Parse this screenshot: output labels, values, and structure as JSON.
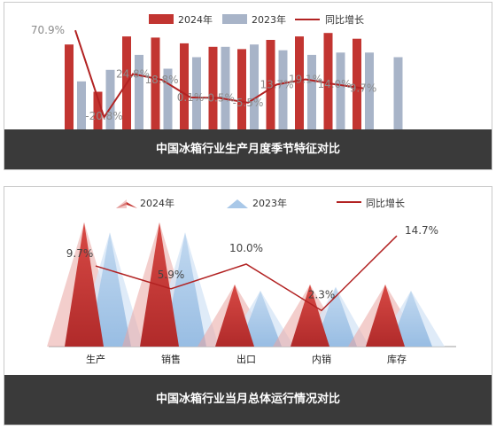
{
  "chart_data": [
    {
      "type": "bar",
      "title": "中国冰箱行业生产月度季节特征对比",
      "colors": {
        "a": "#c23531",
        "b": "#a8b4c8",
        "line": "#b22222",
        "labels": "#8c8c8c"
      },
      "series": [
        {
          "name": "2024年",
          "values": [
            76,
            35,
            83,
            82,
            77,
            74,
            72,
            80,
            83,
            86,
            81,
            null
          ]
        },
        {
          "name": "2023年",
          "values": [
            44,
            54,
            67,
            55,
            65,
            74,
            76,
            71,
            67,
            69,
            69,
            65
          ]
        },
        {
          "name": "同比增长",
          "values": [
            70.9,
            -20.8,
            24.8,
            18.8,
            0.1,
            -0.5,
            -5.5,
            13.7,
            19.1,
            14.0,
            9.7,
            null
          ],
          "labels": [
            "70.9%",
            "-20.8%",
            "24.8%",
            "18.8%",
            "0.1%",
            "-0.5%",
            "-5.5%",
            "13.7%",
            "19.1%",
            "14.0%",
            "9.7%",
            ""
          ]
        }
      ]
    },
    {
      "type": "bar",
      "title": "中国冰箱行业当月总体运行情况对比",
      "categories": [
        "生产",
        "销售",
        "出口",
        "内销",
        "库存"
      ],
      "colors": {
        "a": "#c23531",
        "b": "#a9c8e8",
        "line": "#b22222",
        "labels": "#444444"
      },
      "series": [
        {
          "name": "2024年",
          "values": [
            100,
            100,
            50,
            50,
            50
          ]
        },
        {
          "name": "2023年",
          "values": [
            92,
            92,
            45,
            48,
            45
          ]
        },
        {
          "name": "同比增长",
          "values": [
            9.7,
            5.9,
            10.0,
            2.3,
            14.7
          ],
          "labels": [
            "9.7%",
            "5.9%",
            "10.0%",
            "2.3%",
            "14.7%"
          ]
        }
      ]
    }
  ]
}
